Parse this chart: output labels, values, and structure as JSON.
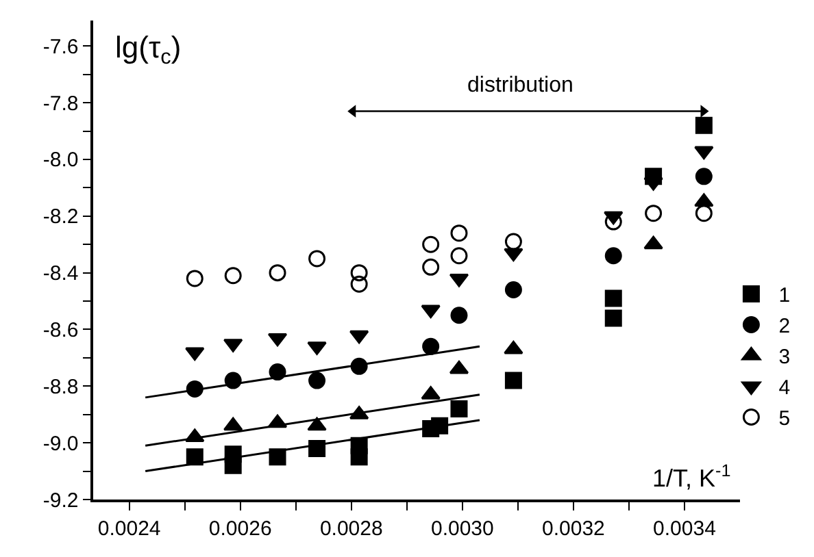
{
  "chart_data": {
    "type": "scatter",
    "ylabel": "lg(τ$_{c}$)",
    "xlabel": "1/T, K$^{-1}$",
    "xlim": [
      0.002335,
      0.0035
    ],
    "ylim": [
      -9.2,
      -7.51
    ],
    "xticks": [
      0.0024,
      {
        "value": 0.0025,
        "label": null
      },
      0.0026,
      {
        "value": 0.0027,
        "label": null
      },
      0.0028,
      {
        "value": 0.0029,
        "label": null
      },
      {
        "value": 0.003,
        "label": "0.0030"
      },
      {
        "value": 0.0031,
        "label": null
      },
      0.0032,
      {
        "value": 0.0033,
        "label": null
      },
      0.0034
    ],
    "yticks": [
      -7.6,
      {
        "value": -7.7,
        "label": null
      },
      -7.8,
      {
        "value": -7.9,
        "label": null
      },
      {
        "value": -8.0,
        "label": "-8.0"
      },
      {
        "value": -8.1,
        "label": null
      },
      -8.2,
      {
        "value": -8.3,
        "label": null
      },
      -8.4,
      {
        "value": -8.5,
        "label": null
      },
      -8.6,
      {
        "value": -8.7,
        "label": null
      },
      -8.8,
      {
        "value": -8.9,
        "label": null
      },
      {
        "value": -9.0,
        "label": "-9.0"
      },
      {
        "value": -9.1,
        "label": null
      },
      -9.2
    ],
    "legend": "right",
    "series": [
      {
        "name": "1",
        "color": "#000000",
        "marker": "square",
        "x": [
          0.002518,
          0.002587,
          0.002587,
          0.002667,
          0.002738,
          0.002814,
          0.002814,
          0.002943,
          0.002959,
          0.002994,
          0.003092,
          0.003272,
          0.003272,
          0.003344,
          0.003435
        ],
        "values": [
          -9.05,
          -9.04,
          -9.08,
          -9.05,
          -9.02,
          -9.01,
          -9.05,
          -8.95,
          -8.94,
          -8.88,
          -8.78,
          -8.49,
          -8.56,
          -8.06,
          -7.88
        ]
      },
      {
        "name": "2",
        "color": "#000000",
        "marker": "circle",
        "x": [
          0.002518,
          0.002587,
          0.002667,
          0.002738,
          0.002814,
          0.002943,
          0.002994,
          0.003092,
          0.003272,
          0.003435
        ],
        "values": [
          -8.81,
          -8.78,
          -8.75,
          -8.78,
          -8.73,
          -8.66,
          -8.55,
          -8.46,
          -8.34,
          -8.06
        ]
      },
      {
        "name": "3",
        "color": "#000000",
        "marker": "triangle",
        "x": [
          0.002518,
          0.002587,
          0.002667,
          0.002738,
          0.002814,
          0.002943,
          0.002994,
          0.003092,
          0.003344,
          0.003435
        ],
        "values": [
          -8.98,
          -8.94,
          -8.93,
          -8.94,
          -8.9,
          -8.83,
          -8.74,
          -8.67,
          -8.3,
          -8.15
        ]
      },
      {
        "name": "4",
        "color": "#000000",
        "marker": "triangle-down",
        "x": [
          0.002518,
          0.002587,
          0.002667,
          0.002738,
          0.002814,
          0.002943,
          0.002994,
          0.003092,
          0.003272,
          0.003344,
          0.003435
        ],
        "values": [
          -8.68,
          -8.65,
          -8.63,
          -8.66,
          -8.62,
          -8.53,
          -8.42,
          -8.33,
          -8.2,
          -8.08,
          -7.97
        ]
      },
      {
        "name": "5",
        "color": "#000000",
        "marker": "circle-open",
        "x": [
          0.002518,
          0.002587,
          0.002667,
          0.002738,
          0.002814,
          0.002814,
          0.002943,
          0.002943,
          0.002994,
          0.002994,
          0.003092,
          0.003272,
          0.003344,
          0.003435
        ],
        "values": [
          -8.42,
          -8.41,
          -8.4,
          -8.35,
          -8.4,
          -8.44,
          -8.3,
          -8.38,
          -8.26,
          -8.34,
          -8.29,
          -8.22,
          -8.19,
          -8.19
        ]
      },
      {
        "type": "line",
        "color": "#000000",
        "x": [
          0.002429,
          0.003031
        ],
        "values": [
          -8.84,
          -8.66
        ]
      },
      {
        "type": "line",
        "color": "#000000",
        "x": [
          0.002429,
          0.003031
        ],
        "values": [
          -9.01,
          -8.83
        ]
      },
      {
        "type": "line",
        "color": "#000000",
        "x": [
          0.002429,
          0.003031
        ],
        "values": [
          -9.1,
          -8.92
        ]
      },
      {
        "type": "line",
        "color": "#000000",
        "marker": "triangle",
        "x": [
          0.002803,
          0.003434
        ],
        "values": [
          -7.83,
          -7.83
        ]
      }
    ],
    "annotations": [
      "distribution"
    ]
  }
}
